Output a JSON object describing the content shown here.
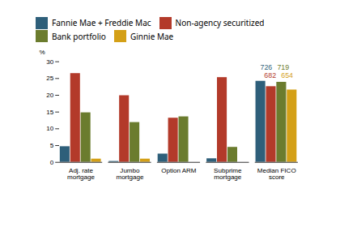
{
  "chart_data": {
    "type": "bar",
    "ylabel": "%",
    "categories": [
      "Adj. rate\nmortgage",
      "Jumbo\nmortgage",
      "Option ARM",
      "Subprime\nmortgage",
      "Median FICO\nscore"
    ],
    "series": [
      {
        "name": "Fannie Mae + Freddie Mac",
        "color": "#2e5f7a",
        "values": [
          4.7,
          0.3,
          2.5,
          1.1,
          24.2
        ]
      },
      {
        "name": "Non-agency securitized",
        "color": "#b33a2a",
        "values": [
          26.5,
          19.9,
          13.2,
          25.3,
          22.6
        ]
      },
      {
        "name": "Bank portfolio",
        "color": "#6b7c2e",
        "values": [
          14.8,
          11.9,
          13.6,
          4.5,
          23.9
        ]
      },
      {
        "name": "Ginnie Mae",
        "color": "#d4a017",
        "values": [
          1.0,
          1.0,
          0.0,
          0.0,
          21.6
        ]
      }
    ],
    "annotations": [
      {
        "text": "726",
        "color": "#2e5f7a"
      },
      {
        "text": "719",
        "color": "#6b7c2e"
      },
      {
        "text": "682",
        "color": "#b33a2a"
      },
      {
        "text": "654",
        "color": "#d4a017"
      }
    ],
    "ylim": [
      0,
      30
    ],
    "yticks": [
      0,
      5,
      10,
      15,
      20,
      25,
      30
    ],
    "grid": false,
    "legend": "upper left"
  }
}
